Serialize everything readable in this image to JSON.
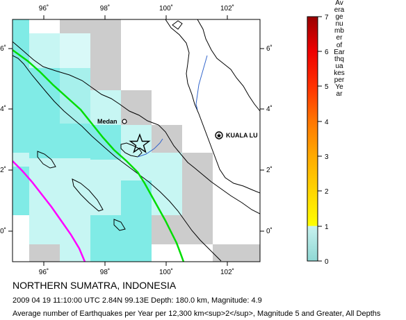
{
  "map": {
    "lon_ticks": [
      "96˚",
      "98˚",
      "100˚",
      "102˚"
    ],
    "lat_ticks_left": [
      "6˚",
      "4˚",
      "2˚",
      "0˚"
    ],
    "lat_ticks_right": [
      "6˚",
      "4˚",
      "2˚",
      "0˚"
    ],
    "places": {
      "medan": "Medan",
      "kuala_lumpur": "KUALA LU"
    },
    "colors": {
      "plate_boundary": "#ff00ff",
      "fault": "#00dd00",
      "river": "#3366cc",
      "coast": "#000000"
    }
  },
  "legend": {
    "title": "Average number of Earthquakes per Year",
    "ticks": [
      "0",
      "1",
      "2",
      "3",
      "4",
      "5",
      "6",
      "7"
    ],
    "colors": {
      "low": "#9fe0dc",
      "yellow": "#ffff00",
      "orange": "#ffa500",
      "red": "#ff0000",
      "dark_red": "#990000"
    }
  },
  "caption": {
    "title": "NORTHERN SUMATRA, INDONESIA",
    "event": "2009 04 19 11:10:00 UTC 2.84N 99.13E Depth: 180.0 km, Magnitude: 4.9",
    "note": "Average number of Earthquakes per Year per 12,300 km<sup>2</sup>, Magnitude 5 and Greater, All Depths"
  }
}
